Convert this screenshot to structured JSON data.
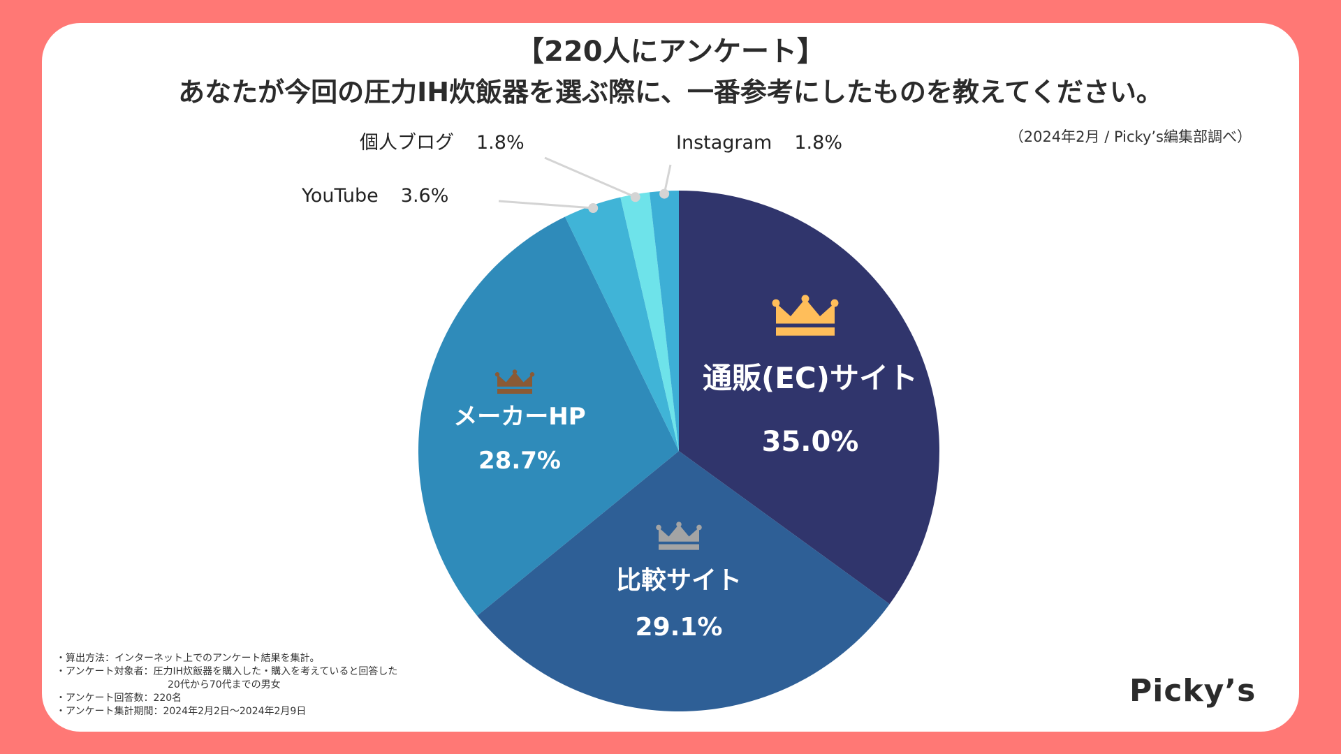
{
  "header": {
    "title_line1": "【220人にアンケート】",
    "title_line2": "あなたが今回の圧力IH炊飯器を選ぶ際に、一番参考にしたものを教えてください。",
    "source": "（2024年2月 / Picky’s編集部調べ）"
  },
  "chart_data": {
    "type": "pie",
    "title": "あなたが今回の圧力IH炊飯器を選ぶ際に、一番参考にしたものを教えてください。",
    "start": "12 o'clock, clockwise",
    "slices": [
      {
        "label": "通販(EC)サイト",
        "value": 35.0,
        "value_label": "35.0%",
        "color": "#30356c",
        "rank_icon": "gold-crown"
      },
      {
        "label": "比較サイト",
        "value": 29.1,
        "value_label": "29.1%",
        "color": "#2e5f96",
        "rank_icon": "silver-crown"
      },
      {
        "label": "メーカーHP",
        "value": 28.7,
        "value_label": "28.7%",
        "color": "#2f8bba",
        "rank_icon": "bronze-crown"
      },
      {
        "label": "YouTube",
        "value": 3.6,
        "value_label": "3.6%",
        "color": "#40b4d7"
      },
      {
        "label": "個人ブログ",
        "value": 1.8,
        "value_label": "1.8%",
        "color": "#6ee3ea"
      },
      {
        "label": "Instagram",
        "value": 1.8,
        "value_label": "1.8%",
        "color": "#3dafd6"
      }
    ],
    "colors": {
      "gold": "#ffbe5a",
      "silver": "#a4a4a4",
      "bronze": "#8a5a35"
    }
  },
  "notes": {
    "line1": "・算出方法：インターネット上でのアンケート結果を集計。",
    "line2": "・アンケート対象者：圧力IH炊飯器を購入した・購入を考えていると回答した",
    "line3": "20代から70代までの男女",
    "line4": "・アンケート回答数：220名",
    "line5": "・アンケート集計期間：2024年2月2日〜2024年2月9日"
  },
  "brand": {
    "logo": "Picky’s"
  }
}
